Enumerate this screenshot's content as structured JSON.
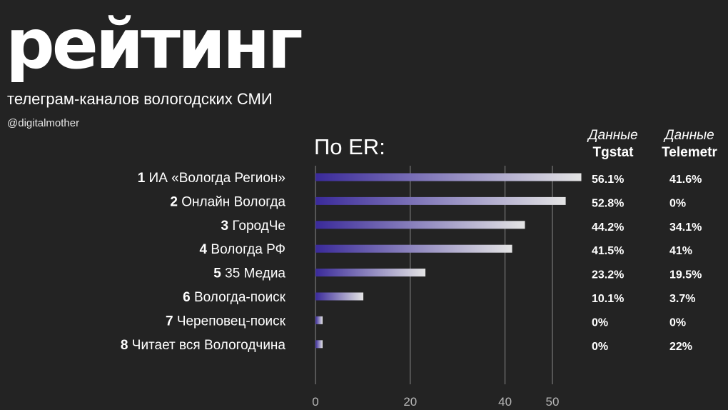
{
  "header": {
    "title": "рейтинг",
    "subtitle": "телеграм-каналов вологодских СМИ",
    "handle": "@digitalmother"
  },
  "colors": {
    "background": "#232323",
    "bar_start": "#3a2a9a",
    "bar_end": "#e4e4e4",
    "grid": "#8a8a8a"
  },
  "chart_data": {
    "type": "bar",
    "orientation": "horizontal",
    "title": "По ER:",
    "categories": [
      {
        "rank": "1",
        "name": "ИА «Вологда Регион»"
      },
      {
        "rank": "2",
        "name": "Онлайн Вологда"
      },
      {
        "rank": "3",
        "name": "ГородЧе"
      },
      {
        "rank": "4",
        "name": "Вологда РФ"
      },
      {
        "rank": "5",
        "name": "35 Медиа"
      },
      {
        "rank": "6",
        "name": "Вологда-поиск"
      },
      {
        "rank": "7",
        "name": "Череповец-поиск"
      },
      {
        "rank": "8",
        "name": "Читает вся Вологодчина"
      }
    ],
    "values": [
      56.1,
      52.8,
      44.2,
      41.5,
      23.2,
      10.1,
      0,
      0
    ],
    "xlim": [
      0,
      55
    ],
    "xticks": [
      0,
      20,
      40,
      50
    ],
    "grid": true,
    "table_columns": [
      {
        "header_top": "Данные",
        "header_bottom": "Tgstat",
        "values": [
          "56.1%",
          "52.8%",
          "44.2%",
          "41.5%",
          "23.2%",
          "10.1%",
          "0%",
          "0%"
        ]
      },
      {
        "header_top": "Данные",
        "header_bottom": "Telemetr",
        "values": [
          "41.6%",
          "0%",
          "34.1%",
          "41%",
          "19.5%",
          "3.7%",
          "0%",
          "22%"
        ]
      }
    ]
  }
}
